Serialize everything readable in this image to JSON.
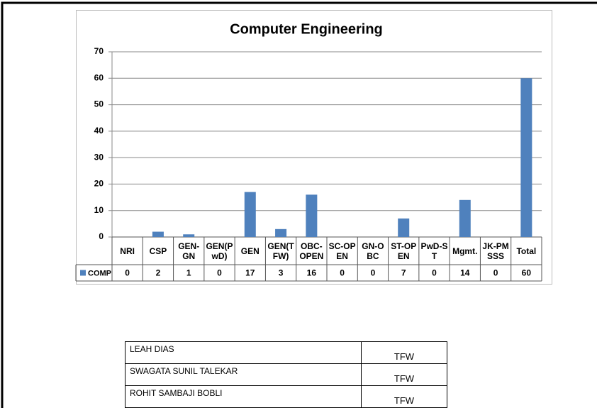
{
  "chart_data": {
    "type": "bar",
    "title": "Computer Engineering",
    "categories": [
      "NRI",
      "CSP",
      "GEN-GN",
      "GEN(PwD)",
      "GEN",
      "GEN(TFW)",
      "OBC-OPEN",
      "SC-OPEN",
      "GN-OBC",
      "ST-OPEN",
      "PwD-ST",
      "Mgmt.",
      "JK-PMSSS",
      "Total"
    ],
    "series": [
      {
        "name": "COMP",
        "color": "#4f81bd",
        "values": [
          0,
          2,
          1,
          0,
          17,
          3,
          16,
          0,
          0,
          7,
          0,
          14,
          0,
          60
        ]
      }
    ],
    "ylim": [
      0,
      70
    ],
    "yticks": [
      0,
      10,
      20,
      30,
      40,
      50,
      60,
      70
    ],
    "grid": true
  },
  "table": {
    "rows": [
      [
        "LEAH DIAS",
        "TFW"
      ],
      [
        "SWAGATA SUNIL TALEKAR",
        "TFW"
      ],
      [
        "ROHIT SAMBAJI BOBLI",
        "TFW"
      ]
    ]
  }
}
